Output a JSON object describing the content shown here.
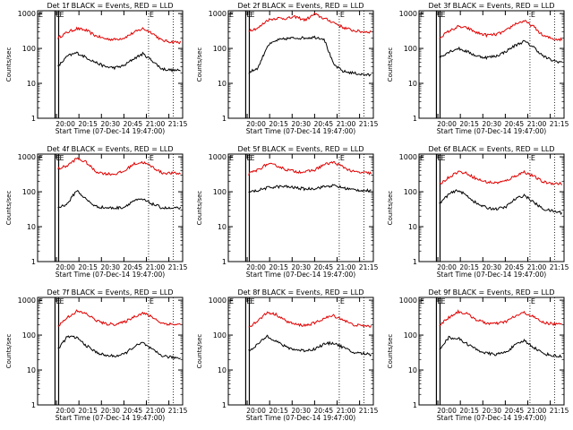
{
  "colors": {
    "events": "#000000",
    "lld": "#e00000",
    "axes": "#000000",
    "markers": "#000000"
  },
  "chart_data": [
    {
      "type": "line",
      "title": "Det 1f BLACK = Events, RED = LLD",
      "xlabel": "Start Time (07-Dec-14 19:47:00)",
      "ylabel": "Counts/sec",
      "xtick_labels": [
        "20:00",
        "20:15",
        "20:30",
        "20:45",
        "21:00",
        "21:15"
      ],
      "ytick_labels": [
        "1",
        "10",
        "100",
        "1000"
      ],
      "ylog": true,
      "ylim": [
        1,
        1200
      ],
      "series": [
        {
          "color": "red",
          "values": [
            200,
            290,
            370,
            330,
            230,
            190,
            180,
            200,
            280,
            370,
            280,
            170,
            155,
            150
          ]
        },
        {
          "color": "black",
          "values": [
            30,
            60,
            75,
            55,
            40,
            30,
            28,
            32,
            50,
            70,
            45,
            26,
            24,
            23
          ]
        }
      ],
      "spike_markers": [
        "E",
        "E"
      ]
    },
    {
      "type": "line",
      "title": "Det 2f BLACK = Events, RED = LLD",
      "xlabel": "Start Time (07-Dec-14 19:47:00)",
      "ylabel": "Counts/sec",
      "xtick_labels": [
        "20:00",
        "20:15",
        "20:30",
        "20:45",
        "21:00",
        "21:15"
      ],
      "ytick_labels": [
        "1",
        "10",
        "100",
        "1000"
      ],
      "ylog": true,
      "ylim": [
        1,
        1200
      ],
      "series": [
        {
          "color": "red",
          "values": [
            330,
            380,
            650,
            740,
            720,
            800,
            650,
            960,
            720,
            560,
            400,
            330,
            300,
            300
          ]
        },
        {
          "color": "black",
          "values": [
            20,
            28,
            120,
            170,
            190,
            200,
            200,
            210,
            190,
            35,
            22,
            20,
            18,
            17
          ]
        }
      ],
      "spike_markers": [
        "E",
        "E"
      ]
    },
    {
      "type": "line",
      "title": "Det 3f BLACK = Events, RED = LLD",
      "xlabel": "Start Time (07-Dec-14 19:47:00)",
      "ylabel": "Counts/sec",
      "xtick_labels": [
        "20:00",
        "20:15",
        "20:30",
        "20:45",
        "21:00",
        "21:15"
      ],
      "ytick_labels": [
        "1",
        "10",
        "100",
        "1000"
      ],
      "ylog": true,
      "ylim": [
        1,
        1200
      ],
      "series": [
        {
          "color": "red",
          "values": [
            200,
            310,
            420,
            380,
            280,
            240,
            250,
            310,
            500,
            610,
            420,
            230,
            190,
            180
          ]
        },
        {
          "color": "black",
          "values": [
            55,
            80,
            100,
            80,
            60,
            55,
            60,
            80,
            120,
            160,
            110,
            60,
            45,
            40
          ]
        }
      ],
      "spike_markers": [
        "E",
        "E"
      ]
    },
    {
      "type": "line",
      "title": "Det 4f BLACK = Events, RED = LLD",
      "xlabel": "Start Time (07-Dec-14 19:47:00)",
      "ylabel": "Counts/sec",
      "xtick_labels": [
        "20:00",
        "20:15",
        "20:30",
        "20:45",
        "21:00",
        "21:15"
      ],
      "ytick_labels": [
        "1",
        "10",
        "100",
        "1000"
      ],
      "ylog": true,
      "ylim": [
        1,
        1200
      ],
      "series": [
        {
          "color": "red",
          "values": [
            450,
            560,
            900,
            700,
            380,
            330,
            320,
            380,
            620,
            700,
            520,
            350,
            340,
            330
          ]
        },
        {
          "color": "black",
          "values": [
            35,
            45,
            110,
            60,
            38,
            35,
            34,
            36,
            55,
            60,
            45,
            35,
            33,
            34
          ]
        }
      ],
      "spike_markers": [
        "E",
        "E"
      ]
    },
    {
      "type": "line",
      "title": "Det 5f BLACK = Events, RED = LLD",
      "xlabel": "Start Time (07-Dec-14 19:47:00)",
      "ylabel": "Counts/sec",
      "xtick_labels": [
        "20:00",
        "20:15",
        "20:30",
        "20:45",
        "21:00",
        "21:15"
      ],
      "ytick_labels": [
        "1",
        "10",
        "100",
        "1000"
      ],
      "ylog": true,
      "ylim": [
        1,
        1200
      ],
      "series": [
        {
          "color": "red",
          "values": [
            320,
            430,
            620,
            560,
            430,
            380,
            370,
            420,
            600,
            700,
            520,
            380,
            350,
            340
          ]
        },
        {
          "color": "black",
          "values": [
            95,
            110,
            130,
            140,
            140,
            130,
            120,
            125,
            140,
            150,
            130,
            115,
            110,
            105
          ]
        }
      ],
      "spike_markers": [
        "E",
        "E"
      ]
    },
    {
      "type": "line",
      "title": "Det 6f BLACK = Events, RED = LLD",
      "xlabel": "Start Time (07-Dec-14 19:47:00)",
      "ylabel": "Counts/sec",
      "xtick_labels": [
        "20:00",
        "20:15",
        "20:30",
        "20:45",
        "21:00",
        "21:15"
      ],
      "ytick_labels": [
        "1",
        "10",
        "100",
        "1000"
      ],
      "ylog": true,
      "ylim": [
        1,
        1200
      ],
      "series": [
        {
          "color": "red",
          "values": [
            160,
            260,
            380,
            330,
            230,
            190,
            180,
            200,
            280,
            370,
            280,
            190,
            175,
            170
          ]
        },
        {
          "color": "black",
          "values": [
            45,
            85,
            110,
            75,
            45,
            35,
            32,
            36,
            60,
            80,
            50,
            32,
            28,
            25
          ]
        }
      ],
      "spike_markers": [
        "E",
        "E"
      ]
    },
    {
      "type": "line",
      "title": "Det 7f BLACK = Events, RED = LLD",
      "xlabel": "Start Time (07-Dec-14 19:47:00)",
      "ylabel": "Counts/sec",
      "xtick_labels": [
        "20:00",
        "20:15",
        "20:30",
        "20:45",
        "21:00",
        "21:15"
      ],
      "ytick_labels": [
        "1",
        "10",
        "100",
        "1000"
      ],
      "ylog": true,
      "ylim": [
        1,
        1200
      ],
      "series": [
        {
          "color": "red",
          "values": [
            180,
            320,
            480,
            410,
            270,
            210,
            205,
            230,
            330,
            430,
            330,
            220,
            205,
            200
          ]
        },
        {
          "color": "black",
          "values": [
            40,
            90,
            85,
            50,
            33,
            26,
            25,
            28,
            45,
            60,
            38,
            26,
            23,
            22
          ]
        }
      ],
      "spike_markers": [
        "E",
        "E"
      ]
    },
    {
      "type": "line",
      "title": "Det 8f BLACK = Events, RED = LLD",
      "xlabel": "Start Time (07-Dec-14 19:47:00)",
      "ylabel": "Counts/sec",
      "xtick_labels": [
        "20:00",
        "20:15",
        "20:30",
        "20:45",
        "21:00",
        "21:15"
      ],
      "ytick_labels": [
        "1",
        "10",
        "100",
        "1000"
      ],
      "ylog": true,
      "ylim": [
        1,
        1200
      ],
      "series": [
        {
          "color": "red",
          "values": [
            170,
            260,
            450,
            380,
            250,
            200,
            190,
            220,
            300,
            360,
            280,
            200,
            185,
            180
          ]
        },
        {
          "color": "black",
          "values": [
            35,
            55,
            95,
            65,
            45,
            38,
            36,
            40,
            55,
            60,
            45,
            32,
            30,
            28
          ]
        }
      ],
      "spike_markers": [
        "E",
        "E"
      ]
    },
    {
      "type": "line",
      "title": "Det 9f BLACK = Events, RED = LLD",
      "xlabel": "Start Time (07-Dec-14 19:47:00)",
      "ylabel": "Counts/sec",
      "xtick_labels": [
        "20:00",
        "20:15",
        "20:30",
        "20:45",
        "21:00",
        "21:15"
      ],
      "ytick_labels": [
        "1",
        "10",
        "100",
        "1000"
      ],
      "ylog": true,
      "ylim": [
        1,
        1200
      ],
      "series": [
        {
          "color": "red",
          "values": [
            190,
            320,
            470,
            400,
            270,
            220,
            210,
            240,
            340,
            440,
            330,
            230,
            210,
            200
          ]
        },
        {
          "color": "black",
          "values": [
            40,
            85,
            80,
            55,
            38,
            30,
            28,
            32,
            50,
            70,
            45,
            30,
            26,
            24
          ]
        }
      ],
      "spike_markers": [
        "E",
        "E"
      ]
    }
  ]
}
